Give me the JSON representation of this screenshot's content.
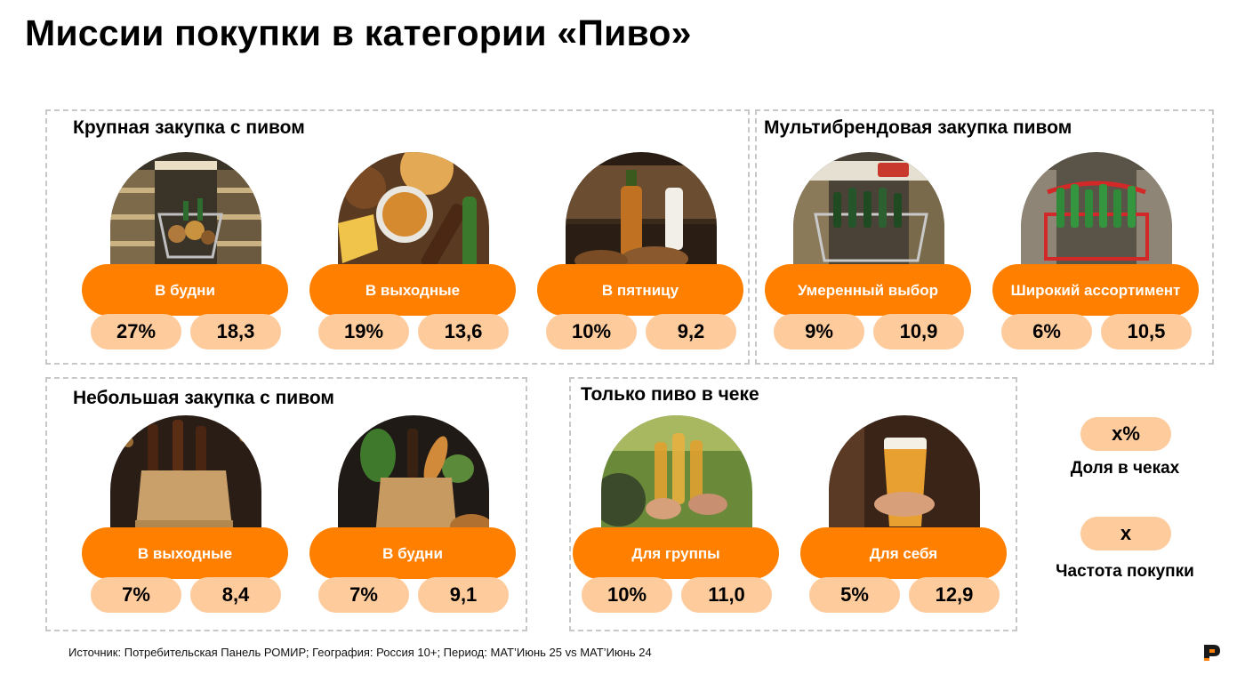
{
  "title": "Миссии покупки в категории «Пиво»",
  "groups": [
    {
      "title": "Крупная закупка с пивом",
      "missions": [
        {
          "label": "В будни",
          "share": "27%",
          "frequency": "18,3",
          "image": "supermarket-cart-photo"
        },
        {
          "label": "В выходные",
          "share": "19%",
          "frequency": "13,6",
          "image": "beer-and-snacks-photo"
        },
        {
          "label": "В пятницу",
          "share": "10%",
          "frequency": "9,2",
          "image": "beer-bottle-and-milk-photo"
        }
      ]
    },
    {
      "title": "Мультибрендовая закупка пивом",
      "missions": [
        {
          "label": "Умеренный выбор",
          "share": "9%",
          "frequency": "10,9",
          "image": "beer-cart-photo"
        },
        {
          "label": "Широкий ассортимент",
          "share": "6%",
          "frequency": "10,5",
          "image": "beer-basket-photo"
        }
      ]
    },
    {
      "title": "Небольшая закупка с пивом",
      "missions": [
        {
          "label": "В выходные",
          "share": "7%",
          "frequency": "8,4",
          "image": "paper-bag-beer-photo"
        },
        {
          "label": "В будни",
          "share": "7%",
          "frequency": "9,1",
          "image": "grocery-bag-photo"
        }
      ]
    },
    {
      "title": "Только пиво в чеке",
      "missions": [
        {
          "label": "Для группы",
          "share": "10%",
          "frequency": "11,0",
          "image": "friends-toast-photo"
        },
        {
          "label": "Для себя",
          "share": "5%",
          "frequency": "12,9",
          "image": "beer-glass-photo"
        }
      ]
    }
  ],
  "legend": {
    "share_symbol": "x%",
    "share_label": "Доля в чеках",
    "frequency_symbol": "x",
    "frequency_label": "Частота покупки"
  },
  "source": "Источник: Потребительская Панель РОМИР; География: Россия 10+; Период: MAT’Июнь 25 vs MAT’Июнь 24",
  "logo": "romir-logo-icon",
  "colors": {
    "accent": "#ff7f00",
    "stat_bg": "#fecb9c",
    "border": "#c8c8c8"
  }
}
